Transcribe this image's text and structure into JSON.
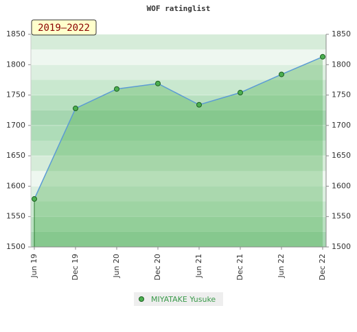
{
  "chart_data": {
    "type": "area",
    "title": "WOF ratinglist",
    "annotation": "2019–2022",
    "categories": [
      "Jun 19",
      "Dec 19",
      "Jun 20",
      "Dec 20",
      "Jun 21",
      "Dec 21",
      "Jun 22",
      "Dec 22"
    ],
    "series": [
      {
        "name": "MIYATAKE Yusuke",
        "color": "#5b9bd5",
        "marker_color": "#4caf50",
        "values": [
          1579,
          1728,
          1760,
          1769,
          1734,
          1754,
          1784,
          1813
        ]
      }
    ],
    "ylim": [
      1500,
      1850
    ],
    "yticks": [
      1500,
      1550,
      1600,
      1650,
      1700,
      1750,
      1800,
      1850
    ],
    "grid": true
  }
}
